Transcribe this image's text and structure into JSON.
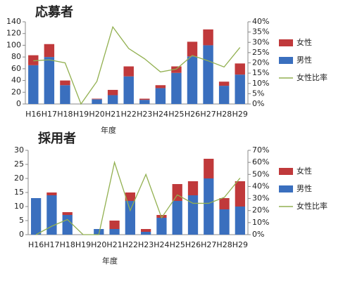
{
  "chart_data": [
    {
      "type": "bar",
      "title": "応募者",
      "xlabel": "年度",
      "stacked": true,
      "categories": [
        "H16",
        "H17",
        "H18",
        "H19",
        "H20",
        "H21",
        "H22",
        "H23",
        "H24",
        "H25",
        "H26",
        "H27",
        "H28",
        "H29"
      ],
      "series": [
        {
          "name": "男性",
          "color": "#3a6fbe",
          "values": [
            66,
            80,
            32,
            0,
            8,
            15,
            47,
            7,
            27,
            53,
            81,
            100,
            31,
            50
          ]
        },
        {
          "name": "女性",
          "color": "#c0393b",
          "values": [
            17,
            22,
            8,
            0,
            1,
            9,
            17,
            2,
            5,
            11,
            25,
            27,
            7,
            19
          ]
        },
        {
          "name": "女性比率",
          "color": "#92b050",
          "type": "line",
          "axis": "y2",
          "values": [
            21,
            21.5,
            20,
            0,
            11,
            37.5,
            27,
            22,
            15.6,
            17,
            23.6,
            21,
            18,
            27.5
          ]
        }
      ],
      "ylim": [
        0,
        140
      ],
      "yticks": [
        0,
        20,
        40,
        60,
        80,
        100,
        120,
        140
      ],
      "y2lim": [
        0,
        40
      ],
      "y2ticks": [
        {
          "value": 0,
          "label": "0%"
        },
        {
          "value": 5,
          "label": "5%"
        },
        {
          "value": 10,
          "label": "10%"
        },
        {
          "value": 15,
          "label": "15%"
        },
        {
          "value": 20,
          "label": "20%"
        },
        {
          "value": 25,
          "label": "25%"
        },
        {
          "value": 30,
          "label": "30%"
        },
        {
          "value": 35,
          "label": "35%"
        },
        {
          "value": 40,
          "label": "40%"
        }
      ],
      "legend": "right"
    },
    {
      "type": "bar",
      "title": "採用者",
      "xlabel": "年度",
      "stacked": true,
      "categories": [
        "H16",
        "H17",
        "H18",
        "H19",
        "H20",
        "H21",
        "H22",
        "H23",
        "H24",
        "H25",
        "H26",
        "H27",
        "H28",
        "H29"
      ],
      "series": [
        {
          "name": "男性",
          "color": "#3a6fbe",
          "values": [
            13,
            14,
            7,
            0,
            2,
            2,
            12,
            1,
            6,
            12,
            14,
            20,
            9,
            10
          ]
        },
        {
          "name": "女性",
          "color": "#c0393b",
          "values": [
            0,
            1,
            1,
            0,
            0,
            3,
            3,
            1,
            1,
            6,
            5,
            7,
            4,
            9
          ]
        },
        {
          "name": "女性比率",
          "color": "#92b050",
          "type": "line",
          "axis": "y2",
          "values": [
            0,
            7,
            12.5,
            0,
            0,
            60,
            20,
            50,
            14,
            33,
            26,
            26,
            31,
            47
          ]
        }
      ],
      "ylim": [
        0,
        30
      ],
      "yticks": [
        0,
        5,
        10,
        15,
        20,
        25,
        30
      ],
      "y2lim": [
        0,
        70
      ],
      "y2ticks": [
        {
          "value": 0,
          "label": "0%"
        },
        {
          "value": 10,
          "label": "10%"
        },
        {
          "value": 20,
          "label": "20%"
        },
        {
          "value": 30,
          "label": "30%"
        },
        {
          "value": 40,
          "label": "40%"
        },
        {
          "value": 50,
          "label": "50%"
        },
        {
          "value": 60,
          "label": "60%"
        },
        {
          "value": 70,
          "label": "70%"
        }
      ],
      "legend": "right"
    }
  ]
}
